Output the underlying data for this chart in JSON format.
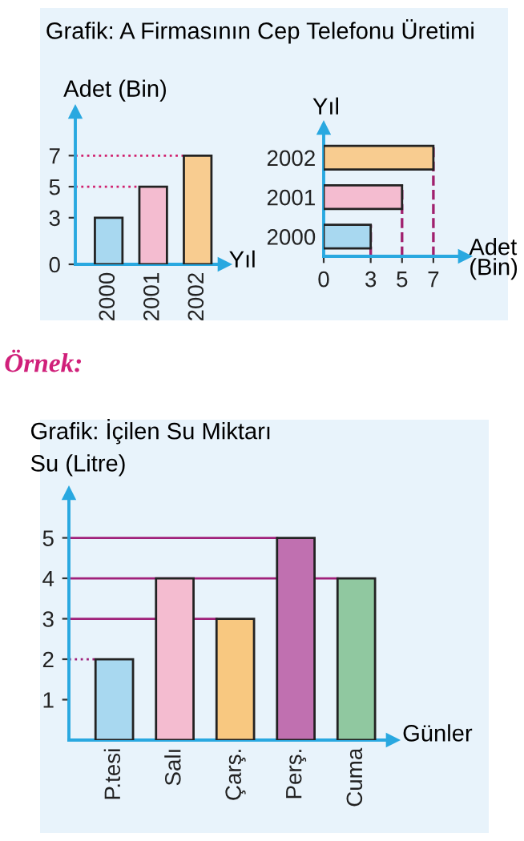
{
  "chart_data": [
    {
      "type": "bar",
      "title": "Grafik: A Firmasının Cep Telefonu Üretimi",
      "xlabel": "Yıl",
      "ylabel": "Adet (Bin)",
      "categories": [
        "2000",
        "2001",
        "2002"
      ],
      "values": [
        3,
        5,
        7
      ],
      "colors": [
        "#a8d8f0",
        "#f4bcd0",
        "#f8cc90"
      ],
      "ylim": [
        0,
        9.8
      ],
      "yticks": [
        0,
        3,
        5,
        7
      ],
      "ref_lines": [
        {
          "axis": "y",
          "value": 5,
          "color": "#d0206e",
          "line_style": "dotted"
        },
        {
          "axis": "y",
          "value": 7,
          "color": "#d0206e",
          "line_style": "dotted"
        }
      ]
    },
    {
      "type": "bar",
      "orientation": "horizontal",
      "xlabel": "Adet (Bin)",
      "ylabel": "Yıl",
      "categories": [
        "2002",
        "2001",
        "2000"
      ],
      "values": [
        7,
        5,
        3
      ],
      "colors": [
        "#f8cc90",
        "#f4bcd0",
        "#a8d8f0"
      ],
      "xlim": [
        0,
        9.0
      ],
      "xticks": [
        0,
        3,
        5,
        7
      ],
      "ref_lines": [
        {
          "axis": "x",
          "value": 3,
          "color": "#a0206e",
          "line_style": "dashed"
        },
        {
          "axis": "x",
          "value": 5,
          "color": "#a0206e",
          "line_style": "dashed"
        },
        {
          "axis": "x",
          "value": 7,
          "color": "#a0206e",
          "line_style": "dashed"
        }
      ]
    },
    {
      "type": "bar",
      "title": "Grafik: İçilen Su Miktarı",
      "xlabel": "Günler",
      "ylabel": "Su (Litre)",
      "annotations": [
        "Örnek:"
      ],
      "categories": [
        "P.tesi",
        "Salı",
        "Çarş.",
        "Perş.",
        "Cuma"
      ],
      "values": [
        2,
        4,
        3,
        5,
        4
      ],
      "colors": [
        "#a8d8f0",
        "#f4bcd0",
        "#f8c880",
        "#c070b0",
        "#90c8a0"
      ],
      "ylim": [
        0,
        6.1
      ],
      "yticks": [
        1,
        2,
        3,
        4,
        5
      ],
      "ref_lines": [
        {
          "axis": "y",
          "value": 2,
          "color": "#a0207a",
          "line_style": "dotted"
        },
        {
          "axis": "y",
          "value": 3,
          "color": "#a0207a",
          "line_style": "solid"
        },
        {
          "axis": "y",
          "value": 4,
          "color": "#a0207a",
          "line_style": "solid"
        },
        {
          "axis": "y",
          "value": 5,
          "color": "#a0207a",
          "line_style": "solid"
        }
      ]
    }
  ]
}
